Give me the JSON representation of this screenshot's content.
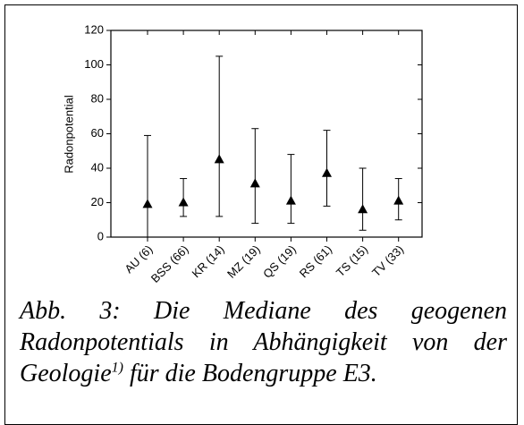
{
  "chart_data": {
    "type": "errorbar",
    "categories": [
      "AU (6)",
      "BSS (66)",
      "KR (14)",
      "MZ (19)",
      "QS (19)",
      "RS (61)",
      "TS (15)",
      "TV (33)"
    ],
    "values": [
      19,
      20,
      45,
      31,
      21,
      37,
      16,
      21
    ],
    "low": [
      0,
      12,
      12,
      8,
      8,
      18,
      4,
      10
    ],
    "high": [
      59,
      34,
      105,
      63,
      48,
      62,
      40,
      34
    ],
    "ylabel": "Radonpotential",
    "ylim": [
      0,
      120
    ],
    "yticks": [
      0,
      20,
      40,
      60,
      80,
      100,
      120
    ],
    "color": "#000000"
  },
  "caption": {
    "text": "Abb. 3: Die Mediane des geogenen Radonpotentials in Abhängigkeit von der Geologie",
    "sup": "1)",
    "end": " für die Bodengruppe E3."
  }
}
